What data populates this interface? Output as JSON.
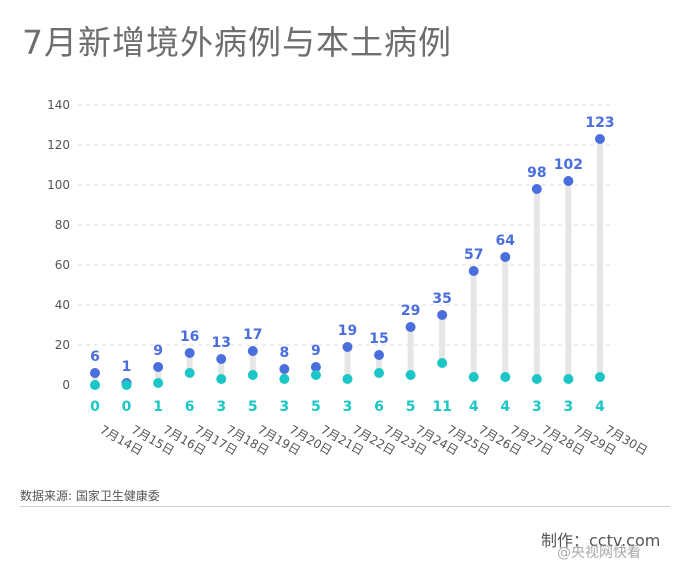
{
  "title": "7月新增境外病例与本土病例",
  "source": "数据来源: 国家卫生健康委",
  "credit": "制作：cctv.com",
  "watermark": "@央视网快看",
  "colors": {
    "imported": "#4a6fdc",
    "local": "#1cc6c6",
    "stem": "#e6e6e6",
    "grid": "#dddddd",
    "axis_text": "#555555"
  },
  "chart_data": {
    "type": "scatter",
    "title": "7月新增境外病例与本土病例",
    "ylim": [
      0,
      140
    ],
    "yticks": [
      0,
      20,
      40,
      60,
      80,
      100,
      120,
      140
    ],
    "grid": true,
    "categories": [
      "7月14日",
      "7月15日",
      "7月16日",
      "7月17日",
      "7月18日",
      "7月19日",
      "7月20日",
      "7月21日",
      "7月22日",
      "7月23日",
      "7月24日",
      "7月25日",
      "7月26日",
      "7月27日",
      "7月28日",
      "7月29日",
      "7月30日"
    ],
    "series": [
      {
        "values": [
          6,
          1,
          9,
          16,
          13,
          17,
          8,
          9,
          19,
          15,
          29,
          35,
          57,
          64,
          98,
          102,
          123
        ]
      },
      {
        "values": [
          0,
          0,
          1,
          6,
          3,
          5,
          3,
          5,
          3,
          6,
          5,
          11,
          4,
          4,
          3,
          3,
          4
        ]
      }
    ]
  }
}
